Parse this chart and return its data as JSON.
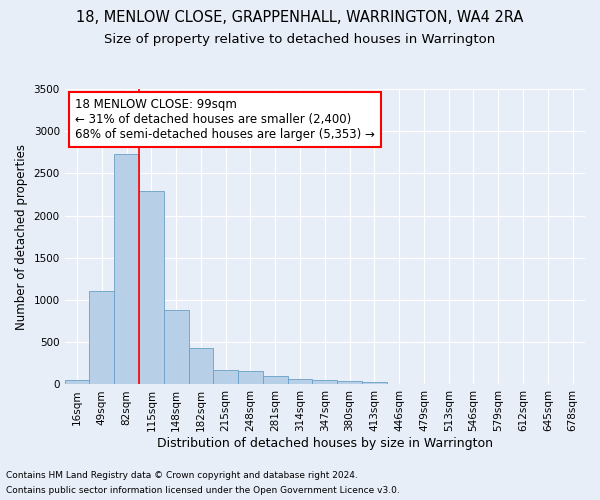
{
  "title": "18, MENLOW CLOSE, GRAPPENHALL, WARRINGTON, WA4 2RA",
  "subtitle": "Size of property relative to detached houses in Warrington",
  "xlabel": "Distribution of detached houses by size in Warrington",
  "ylabel": "Number of detached properties",
  "categories": [
    "16sqm",
    "49sqm",
    "82sqm",
    "115sqm",
    "148sqm",
    "182sqm",
    "215sqm",
    "248sqm",
    "281sqm",
    "314sqm",
    "347sqm",
    "380sqm",
    "413sqm",
    "446sqm",
    "479sqm",
    "513sqm",
    "546sqm",
    "579sqm",
    "612sqm",
    "645sqm",
    "678sqm"
  ],
  "values": [
    55,
    1105,
    2730,
    2290,
    880,
    430,
    170,
    165,
    95,
    65,
    50,
    40,
    30,
    0,
    0,
    0,
    0,
    0,
    0,
    0,
    0
  ],
  "bar_color": "#b8cfe8",
  "bar_edge_color": "#6a9fc8",
  "background_color": "#e8eef8",
  "grid_color": "#ffffff",
  "annotation_line1": "18 MENLOW CLOSE: 99sqm",
  "annotation_line2": "← 31% of detached houses are smaller (2,400)",
  "annotation_line3": "68% of semi-detached houses are larger (5,353) →",
  "red_line_x": 2.5,
  "ylim": [
    0,
    3500
  ],
  "yticks": [
    0,
    500,
    1000,
    1500,
    2000,
    2500,
    3000,
    3500
  ],
  "footnote1": "Contains HM Land Registry data © Crown copyright and database right 2024.",
  "footnote2": "Contains public sector information licensed under the Open Government Licence v3.0.",
  "title_fontsize": 10.5,
  "subtitle_fontsize": 9.5,
  "xlabel_fontsize": 9,
  "ylabel_fontsize": 8.5,
  "tick_fontsize": 7.5,
  "annot_fontsize": 8.5,
  "footnote_fontsize": 6.5
}
